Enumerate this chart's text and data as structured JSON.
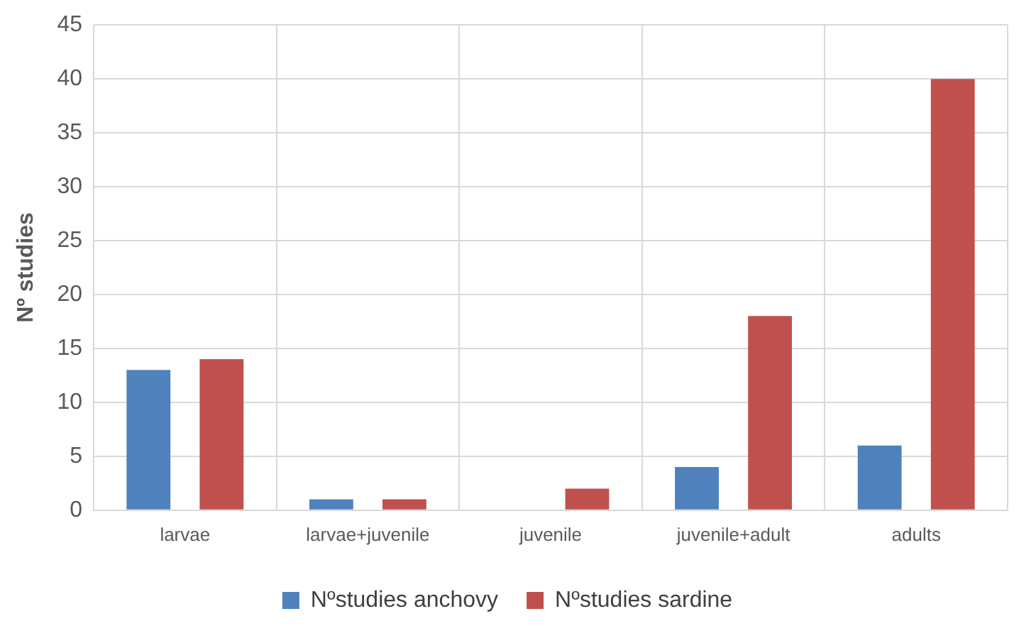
{
  "chart_data": {
    "type": "bar",
    "ylabel": "Nº studies",
    "categories": [
      "larvae",
      "larvae+juvenile",
      "juvenile",
      "juvenile+adult",
      "adults"
    ],
    "series": [
      {
        "name": "Nºstudies anchovy",
        "color": "#4f81bd",
        "values": [
          13,
          1,
          0,
          4,
          6
        ]
      },
      {
        "name": "Nºstudies sardine",
        "color": "#c0504d",
        "values": [
          14,
          1,
          2,
          18,
          40
        ]
      }
    ],
    "ylim": [
      0,
      45
    ],
    "yticks": [
      0,
      5,
      10,
      15,
      20,
      25,
      30,
      35,
      40,
      45
    ],
    "grid": true,
    "legend": "bottom"
  }
}
